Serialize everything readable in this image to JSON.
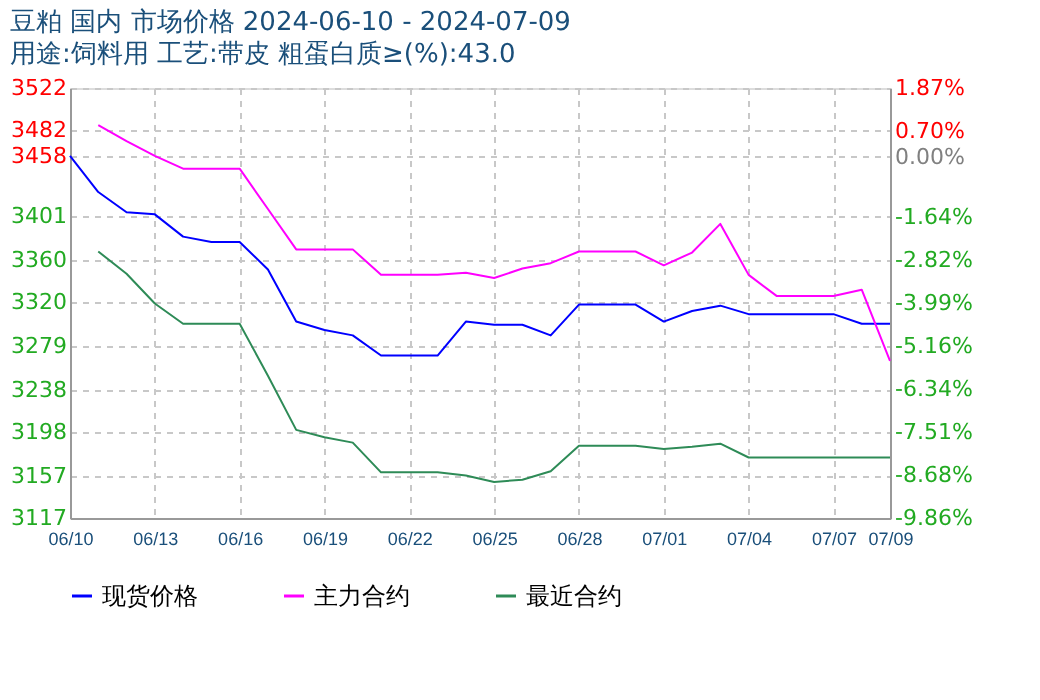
{
  "chart_data": {
    "type": "line",
    "title": "豆粕 国内 市场价格 2024-06-10 - 2024-07-09",
    "subtitle": "用途:饲料用 工艺:带皮 粗蛋白质≥(%):43.0",
    "x": [
      "2024-06-10",
      "2024-06-11",
      "2024-06-12",
      "2024-06-13",
      "2024-06-14",
      "2024-06-15",
      "2024-06-16",
      "2024-06-17",
      "2024-06-18",
      "2024-06-19",
      "2024-06-20",
      "2024-06-21",
      "2024-06-22",
      "2024-06-23",
      "2024-06-24",
      "2024-06-25",
      "2024-06-26",
      "2024-06-27",
      "2024-06-28",
      "2024-06-29",
      "2024-06-30",
      "2024-07-01",
      "2024-07-02",
      "2024-07-03",
      "2024-07-04",
      "2024-07-05",
      "2024-07-06",
      "2024-07-07",
      "2024-07-08",
      "2024-07-09"
    ],
    "series": [
      {
        "name": "现货价格",
        "color": "#0000ff",
        "values": [
          3458,
          3424,
          3405,
          3403,
          3382,
          3377,
          3377,
          3351,
          3302,
          3294,
          3289,
          3270,
          3270,
          3270,
          3302,
          3299,
          3299,
          3289,
          3318,
          3318,
          3318,
          3302,
          3312,
          3317,
          3309,
          3309,
          3309,
          3309,
          3300,
          3300
        ]
      },
      {
        "name": "主力合约",
        "color": "#ff00ff",
        "values": [
          null,
          3487,
          3472,
          3458,
          3446,
          3446,
          3446,
          3408,
          3370,
          3370,
          3370,
          3346,
          3346,
          3346,
          3348,
          3343,
          3352,
          3357,
          3368,
          3368,
          3368,
          3355,
          3367,
          3394,
          3346,
          3326,
          3326,
          3326,
          3332,
          3265
        ]
      },
      {
        "name": "最近合约",
        "color": "#2e8b57",
        "values": [
          null,
          3368,
          3347,
          3319,
          3300,
          3300,
          3300,
          3251,
          3200,
          3193,
          3188,
          3160,
          3160,
          3160,
          3157,
          3151,
          3153,
          3161,
          3185,
          3185,
          3185,
          3182,
          3184,
          3187,
          3174,
          3174,
          3174,
          3174,
          3174,
          3174
        ]
      }
    ],
    "xlim": [
      "2024-06-10",
      "2024-07-09"
    ],
    "xticks": [
      {
        "value": "2024-06-10",
        "label": "06/10"
      },
      {
        "value": "2024-06-13",
        "label": "06/13"
      },
      {
        "value": "2024-06-16",
        "label": "06/16"
      },
      {
        "value": "2024-06-19",
        "label": "06/19"
      },
      {
        "value": "2024-06-22",
        "label": "06/22"
      },
      {
        "value": "2024-06-25",
        "label": "06/25"
      },
      {
        "value": "2024-06-28",
        "label": "06/28"
      },
      {
        "value": "2024-07-01",
        "label": "07/01"
      },
      {
        "value": "2024-07-04",
        "label": "07/04"
      },
      {
        "value": "2024-07-07",
        "label": "07/07"
      },
      {
        "value": "2024-07-09",
        "label": "07/09"
      }
    ],
    "ylim": [
      3117,
      3522
    ],
    "yticks": [
      3117,
      3157,
      3198,
      3238,
      3279,
      3320,
      3360,
      3401,
      3458,
      3482,
      3522
    ],
    "y2lim": [
      -9.86,
      1.87
    ],
    "y2ticks": [
      {
        "value": -9.86,
        "label": "-9.86%"
      },
      {
        "value": -8.68,
        "label": "-8.68%"
      },
      {
        "value": -7.51,
        "label": "-7.51%"
      },
      {
        "value": -6.34,
        "label": "-6.34%"
      },
      {
        "value": -5.16,
        "label": "-5.16%"
      },
      {
        "value": -3.99,
        "label": "-3.99%"
      },
      {
        "value": -2.82,
        "label": "-2.82%"
      },
      {
        "value": -1.64,
        "label": "-1.64%"
      },
      {
        "value": 0,
        "label": "0.00%"
      },
      {
        "value": 0.7,
        "label": "0.70%"
      },
      {
        "value": 1.87,
        "label": "1.87%"
      }
    ],
    "grid": true,
    "legend": "bottom",
    "marker": "none",
    "line_style": "solid"
  }
}
